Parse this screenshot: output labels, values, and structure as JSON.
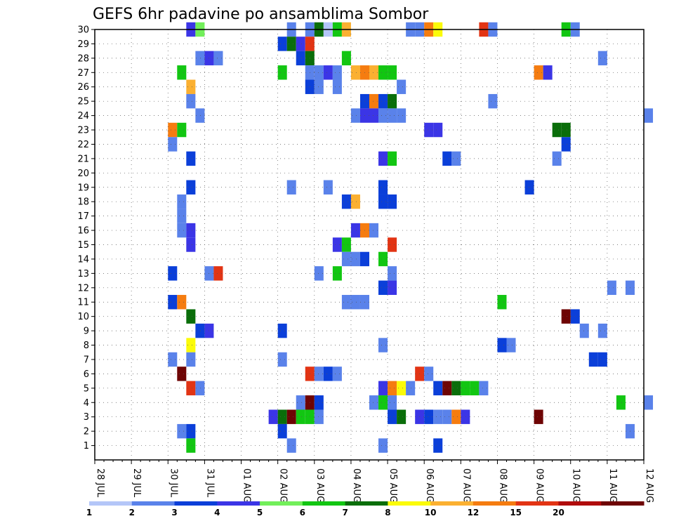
{
  "chart_data": {
    "type": "heatmap",
    "title": "GEFS 6hr padavine po ansamblima Sombor",
    "x_tick_labels": [
      "28 JUL",
      "29 JUL",
      "30 JUL",
      "31 JUL",
      "01 AUG",
      "02 AUG",
      "03 AUG",
      "04 AUG",
      "05 AUG",
      "06 AUG",
      "07 AUG",
      "08 AUG",
      "09 AUG",
      "10 AUG",
      "11 AUG",
      "12 AUG"
    ],
    "y_tick_labels": [
      "1",
      "2",
      "3",
      "4",
      "5",
      "6",
      "7",
      "8",
      "9",
      "10",
      "11",
      "12",
      "13",
      "14",
      "15",
      "16",
      "17",
      "18",
      "19",
      "20",
      "21",
      "22",
      "23",
      "24",
      "25",
      "26",
      "27",
      "28",
      "29",
      "30"
    ],
    "y_range": [
      0,
      30
    ],
    "x_range_days": [
      0,
      15
    ],
    "time_step": "6hr",
    "grid": true,
    "legend": {
      "placement": "bottom",
      "labels": [
        "1",
        "2",
        "3",
        "4",
        "5",
        "6",
        "7",
        "8",
        "10",
        "12",
        "15",
        "20"
      ],
      "colors": [
        "#b4c6f8",
        "#5a82ea",
        "#0b3fd9",
        "#3b35e6",
        "#72ef5a",
        "#12c612",
        "#0a6e0a",
        "#fbfb09",
        "#fbb031",
        "#f57c10",
        "#e23414",
        "#b00c0c",
        "#6e0404"
      ]
    },
    "cells": [
      {
        "member": 30,
        "day": 2.5,
        "cat": 3
      },
      {
        "member": 30,
        "day": 2.75,
        "cat": 4
      },
      {
        "member": 30,
        "day": 5.25,
        "cat": 1
      },
      {
        "member": 30,
        "day": 5.75,
        "cat": 1
      },
      {
        "member": 30,
        "day": 6.0,
        "cat": 6
      },
      {
        "member": 30,
        "day": 6.25,
        "cat": 13
      },
      {
        "member": 30,
        "day": 6.5,
        "cat": 5
      },
      {
        "member": 30,
        "day": 6.75,
        "cat": 8
      },
      {
        "member": 30,
        "day": 8.5,
        "cat": 1
      },
      {
        "member": 30,
        "day": 8.75,
        "cat": 1
      },
      {
        "member": 30,
        "day": 9.0,
        "cat": 9
      },
      {
        "member": 30,
        "day": 9.25,
        "cat": 7
      },
      {
        "member": 30,
        "day": 10.5,
        "cat": 10
      },
      {
        "member": 30,
        "day": 10.75,
        "cat": 1
      },
      {
        "member": 30,
        "day": 12.75,
        "cat": 5
      },
      {
        "member": 30,
        "day": 13.0,
        "cat": 1
      },
      {
        "member": 29,
        "day": 5.0,
        "cat": 2
      },
      {
        "member": 29,
        "day": 5.25,
        "cat": 6
      },
      {
        "member": 29,
        "day": 5.5,
        "cat": 3
      },
      {
        "member": 29,
        "day": 5.75,
        "cat": 10
      },
      {
        "member": 28,
        "day": 2.75,
        "cat": 1
      },
      {
        "member": 28,
        "day": 3.0,
        "cat": 3
      },
      {
        "member": 28,
        "day": 3.25,
        "cat": 1
      },
      {
        "member": 28,
        "day": 5.5,
        "cat": 2
      },
      {
        "member": 28,
        "day": 5.75,
        "cat": 6
      },
      {
        "member": 28,
        "day": 6.75,
        "cat": 5
      },
      {
        "member": 28,
        "day": 13.75,
        "cat": 1
      },
      {
        "member": 27,
        "day": 2.25,
        "cat": 5
      },
      {
        "member": 27,
        "day": 5.0,
        "cat": 5
      },
      {
        "member": 27,
        "day": 5.75,
        "cat": 1
      },
      {
        "member": 27,
        "day": 6.0,
        "cat": 1
      },
      {
        "member": 27,
        "day": 6.25,
        "cat": 3
      },
      {
        "member": 27,
        "day": 6.5,
        "cat": 1
      },
      {
        "member": 27,
        "day": 7.0,
        "cat": 8
      },
      {
        "member": 27,
        "day": 7.25,
        "cat": 9
      },
      {
        "member": 27,
        "day": 7.5,
        "cat": 8
      },
      {
        "member": 27,
        "day": 7.75,
        "cat": 5
      },
      {
        "member": 27,
        "day": 8.0,
        "cat": 5
      },
      {
        "member": 27,
        "day": 12.0,
        "cat": 9
      },
      {
        "member": 27,
        "day": 12.25,
        "cat": 3
      },
      {
        "member": 26,
        "day": 2.5,
        "cat": 8
      },
      {
        "member": 26,
        "day": 5.75,
        "cat": 2
      },
      {
        "member": 26,
        "day": 6.0,
        "cat": 1
      },
      {
        "member": 26,
        "day": 6.5,
        "cat": 1
      },
      {
        "member": 26,
        "day": 8.25,
        "cat": 1
      },
      {
        "member": 25,
        "day": 2.5,
        "cat": 1
      },
      {
        "member": 25,
        "day": 7.25,
        "cat": 2
      },
      {
        "member": 25,
        "day": 7.5,
        "cat": 9
      },
      {
        "member": 25,
        "day": 7.75,
        "cat": 2
      },
      {
        "member": 25,
        "day": 8.0,
        "cat": 6
      },
      {
        "member": 25,
        "day": 10.75,
        "cat": 1
      },
      {
        "member": 24,
        "day": 2.75,
        "cat": 1
      },
      {
        "member": 24,
        "day": 7.0,
        "cat": 1
      },
      {
        "member": 24,
        "day": 7.25,
        "cat": 3
      },
      {
        "member": 24,
        "day": 7.5,
        "cat": 3
      },
      {
        "member": 24,
        "day": 7.75,
        "cat": 1
      },
      {
        "member": 24,
        "day": 8.0,
        "cat": 1
      },
      {
        "member": 24,
        "day": 8.25,
        "cat": 1
      },
      {
        "member": 24,
        "day": 15.0,
        "cat": 1
      },
      {
        "member": 23,
        "day": 2.0,
        "cat": 9
      },
      {
        "member": 23,
        "day": 2.25,
        "cat": 5
      },
      {
        "member": 23,
        "day": 9.0,
        "cat": 3
      },
      {
        "member": 23,
        "day": 9.25,
        "cat": 3
      },
      {
        "member": 23,
        "day": 12.5,
        "cat": 6
      },
      {
        "member": 23,
        "day": 12.75,
        "cat": 6
      },
      {
        "member": 22,
        "day": 2.0,
        "cat": 1
      },
      {
        "member": 22,
        "day": 12.75,
        "cat": 2
      },
      {
        "member": 21,
        "day": 2.5,
        "cat": 2
      },
      {
        "member": 21,
        "day": 7.75,
        "cat": 3
      },
      {
        "member": 21,
        "day": 8.0,
        "cat": 5
      },
      {
        "member": 21,
        "day": 9.5,
        "cat": 2
      },
      {
        "member": 21,
        "day": 9.75,
        "cat": 1
      },
      {
        "member": 21,
        "day": 12.5,
        "cat": 1
      },
      {
        "member": 19,
        "day": 2.5,
        "cat": 2
      },
      {
        "member": 19,
        "day": 5.25,
        "cat": 1
      },
      {
        "member": 19,
        "day": 6.25,
        "cat": 1
      },
      {
        "member": 19,
        "day": 7.75,
        "cat": 2
      },
      {
        "member": 19,
        "day": 11.75,
        "cat": 2
      },
      {
        "member": 18,
        "day": 2.25,
        "cat": 1
      },
      {
        "member": 18,
        "day": 6.75,
        "cat": 2
      },
      {
        "member": 18,
        "day": 7.0,
        "cat": 8
      },
      {
        "member": 18,
        "day": 7.75,
        "cat": 2
      },
      {
        "member": 18,
        "day": 8.0,
        "cat": 2
      },
      {
        "member": 17,
        "day": 2.25,
        "cat": 1
      },
      {
        "member": 16,
        "day": 2.25,
        "cat": 1
      },
      {
        "member": 16,
        "day": 2.5,
        "cat": 3
      },
      {
        "member": 16,
        "day": 7.0,
        "cat": 3
      },
      {
        "member": 16,
        "day": 7.25,
        "cat": 9
      },
      {
        "member": 16,
        "day": 7.5,
        "cat": 1
      },
      {
        "member": 15,
        "day": 2.5,
        "cat": 3
      },
      {
        "member": 15,
        "day": 6.5,
        "cat": 3
      },
      {
        "member": 15,
        "day": 6.75,
        "cat": 5
      },
      {
        "member": 15,
        "day": 8.0,
        "cat": 10
      },
      {
        "member": 14,
        "day": 6.75,
        "cat": 1
      },
      {
        "member": 14,
        "day": 7.0,
        "cat": 1
      },
      {
        "member": 14,
        "day": 7.25,
        "cat": 2
      },
      {
        "member": 14,
        "day": 7.75,
        "cat": 5
      },
      {
        "member": 13,
        "day": 2.0,
        "cat": 2
      },
      {
        "member": 13,
        "day": 3.0,
        "cat": 1
      },
      {
        "member": 13,
        "day": 3.25,
        "cat": 10
      },
      {
        "member": 13,
        "day": 6.0,
        "cat": 1
      },
      {
        "member": 13,
        "day": 6.5,
        "cat": 5
      },
      {
        "member": 13,
        "day": 8.0,
        "cat": 1
      },
      {
        "member": 12,
        "day": 7.75,
        "cat": 2
      },
      {
        "member": 12,
        "day": 8.0,
        "cat": 3
      },
      {
        "member": 12,
        "day": 14.0,
        "cat": 1
      },
      {
        "member": 12,
        "day": 14.5,
        "cat": 1
      },
      {
        "member": 11,
        "day": 2.0,
        "cat": 2
      },
      {
        "member": 11,
        "day": 2.25,
        "cat": 9
      },
      {
        "member": 11,
        "day": 6.75,
        "cat": 1
      },
      {
        "member": 11,
        "day": 7.0,
        "cat": 1
      },
      {
        "member": 11,
        "day": 7.25,
        "cat": 1
      },
      {
        "member": 11,
        "day": 11.0,
        "cat": 5
      },
      {
        "member": 10,
        "day": 2.5,
        "cat": 6
      },
      {
        "member": 10,
        "day": 12.75,
        "cat": 12
      },
      {
        "member": 10,
        "day": 13.0,
        "cat": 2
      },
      {
        "member": 9,
        "day": 2.75,
        "cat": 2
      },
      {
        "member": 9,
        "day": 3.0,
        "cat": 3
      },
      {
        "member": 9,
        "day": 5.0,
        "cat": 2
      },
      {
        "member": 9,
        "day": 13.25,
        "cat": 1
      },
      {
        "member": 9,
        "day": 13.75,
        "cat": 1
      },
      {
        "member": 8,
        "day": 2.5,
        "cat": 7
      },
      {
        "member": 8,
        "day": 7.75,
        "cat": 1
      },
      {
        "member": 8,
        "day": 11.0,
        "cat": 2
      },
      {
        "member": 8,
        "day": 11.25,
        "cat": 1
      },
      {
        "member": 7,
        "day": 2.0,
        "cat": 1
      },
      {
        "member": 7,
        "day": 2.5,
        "cat": 1
      },
      {
        "member": 7,
        "day": 5.0,
        "cat": 1
      },
      {
        "member": 7,
        "day": 13.5,
        "cat": 2
      },
      {
        "member": 7,
        "day": 13.75,
        "cat": 2
      },
      {
        "member": 6,
        "day": 2.25,
        "cat": 12
      },
      {
        "member": 6,
        "day": 5.75,
        "cat": 10
      },
      {
        "member": 6,
        "day": 6.0,
        "cat": 1
      },
      {
        "member": 6,
        "day": 6.25,
        "cat": 2
      },
      {
        "member": 6,
        "day": 6.5,
        "cat": 1
      },
      {
        "member": 6,
        "day": 8.75,
        "cat": 10
      },
      {
        "member": 6,
        "day": 9.0,
        "cat": 1
      },
      {
        "member": 5,
        "day": 2.5,
        "cat": 10
      },
      {
        "member": 5,
        "day": 2.75,
        "cat": 1
      },
      {
        "member": 5,
        "day": 7.75,
        "cat": 3
      },
      {
        "member": 5,
        "day": 8.0,
        "cat": 9
      },
      {
        "member": 5,
        "day": 8.25,
        "cat": 7
      },
      {
        "member": 5,
        "day": 8.5,
        "cat": 1
      },
      {
        "member": 5,
        "day": 9.25,
        "cat": 2
      },
      {
        "member": 5,
        "day": 9.5,
        "cat": 12
      },
      {
        "member": 5,
        "day": 9.75,
        "cat": 6
      },
      {
        "member": 5,
        "day": 10.0,
        "cat": 5
      },
      {
        "member": 5,
        "day": 10.25,
        "cat": 5
      },
      {
        "member": 5,
        "day": 10.5,
        "cat": 1
      },
      {
        "member": 4,
        "day": 5.5,
        "cat": 1
      },
      {
        "member": 4,
        "day": 5.75,
        "cat": 12
      },
      {
        "member": 4,
        "day": 6.0,
        "cat": 2
      },
      {
        "member": 4,
        "day": 7.5,
        "cat": 1
      },
      {
        "member": 4,
        "day": 7.75,
        "cat": 5
      },
      {
        "member": 4,
        "day": 8.0,
        "cat": 1
      },
      {
        "member": 4,
        "day": 14.25,
        "cat": 5
      },
      {
        "member": 4,
        "day": 15.0,
        "cat": 1
      },
      {
        "member": 3,
        "day": 4.75,
        "cat": 3
      },
      {
        "member": 3,
        "day": 5.0,
        "cat": 6
      },
      {
        "member": 3,
        "day": 5.25,
        "cat": 12
      },
      {
        "member": 3,
        "day": 5.5,
        "cat": 5
      },
      {
        "member": 3,
        "day": 5.75,
        "cat": 5
      },
      {
        "member": 3,
        "day": 6.0,
        "cat": 1
      },
      {
        "member": 3,
        "day": 8.0,
        "cat": 2
      },
      {
        "member": 3,
        "day": 8.25,
        "cat": 6
      },
      {
        "member": 3,
        "day": 8.75,
        "cat": 3
      },
      {
        "member": 3,
        "day": 9.0,
        "cat": 2
      },
      {
        "member": 3,
        "day": 9.25,
        "cat": 1
      },
      {
        "member": 3,
        "day": 9.5,
        "cat": 1
      },
      {
        "member": 3,
        "day": 9.75,
        "cat": 9
      },
      {
        "member": 3,
        "day": 10.0,
        "cat": 3
      },
      {
        "member": 3,
        "day": 12.0,
        "cat": 12
      },
      {
        "member": 2,
        "day": 2.25,
        "cat": 1
      },
      {
        "member": 2,
        "day": 2.5,
        "cat": 2
      },
      {
        "member": 2,
        "day": 5.0,
        "cat": 2
      },
      {
        "member": 2,
        "day": 14.5,
        "cat": 1
      },
      {
        "member": 1,
        "day": 2.5,
        "cat": 5
      },
      {
        "member": 1,
        "day": 5.25,
        "cat": 1
      },
      {
        "member": 1,
        "day": 7.75,
        "cat": 1
      },
      {
        "member": 1,
        "day": 9.25,
        "cat": 2
      }
    ]
  }
}
